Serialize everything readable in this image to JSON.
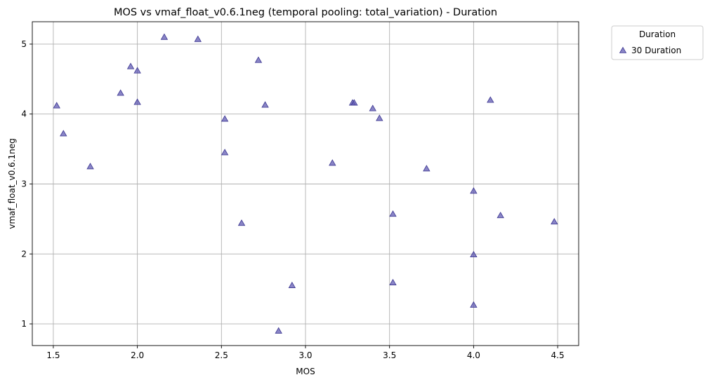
{
  "chart_data": {
    "type": "scatter",
    "title": "MOS vs vmaf_float_v0.6.1neg (temporal pooling: total_variation) - Duration",
    "xlabel": "MOS",
    "ylabel": "vmaf_float_v0.6.1neg",
    "xlim": [
      1.375,
      4.625
    ],
    "ylim": [
      0.69,
      5.32
    ],
    "xticks": [
      1.5,
      2.0,
      2.5,
      3.0,
      3.5,
      4.0,
      4.5
    ],
    "xtick_labels": [
      "1.5",
      "2.0",
      "2.5",
      "3.0",
      "3.5",
      "4.0",
      "4.5"
    ],
    "yticks": [
      1,
      2,
      3,
      4,
      5
    ],
    "ytick_labels": [
      "1",
      "2",
      "3",
      "4",
      "5"
    ],
    "grid": true,
    "legend": {
      "title": "Duration",
      "placement": "outside-top-right"
    },
    "series": [
      {
        "name": "30 Duration",
        "marker": "triangle",
        "color": "#5b55b0",
        "points": [
          {
            "x": 1.52,
            "y": 4.12
          },
          {
            "x": 1.56,
            "y": 3.72
          },
          {
            "x": 1.72,
            "y": 3.25
          },
          {
            "x": 1.9,
            "y": 4.3
          },
          {
            "x": 1.96,
            "y": 4.68
          },
          {
            "x": 2.0,
            "y": 4.62
          },
          {
            "x": 2.0,
            "y": 4.17
          },
          {
            "x": 2.16,
            "y": 5.1
          },
          {
            "x": 2.36,
            "y": 5.07
          },
          {
            "x": 2.52,
            "y": 3.93
          },
          {
            "x": 2.52,
            "y": 3.45
          },
          {
            "x": 2.62,
            "y": 2.44
          },
          {
            "x": 2.72,
            "y": 4.77
          },
          {
            "x": 2.76,
            "y": 4.13
          },
          {
            "x": 2.84,
            "y": 0.9
          },
          {
            "x": 2.92,
            "y": 1.55
          },
          {
            "x": 3.16,
            "y": 3.3
          },
          {
            "x": 3.28,
            "y": 4.16
          },
          {
            "x": 3.29,
            "y": 4.16
          },
          {
            "x": 3.4,
            "y": 4.08
          },
          {
            "x": 3.44,
            "y": 3.94
          },
          {
            "x": 3.52,
            "y": 2.57
          },
          {
            "x": 3.52,
            "y": 1.59
          },
          {
            "x": 3.72,
            "y": 3.22
          },
          {
            "x": 4.0,
            "y": 2.9
          },
          {
            "x": 4.0,
            "y": 1.99
          },
          {
            "x": 4.0,
            "y": 1.27
          },
          {
            "x": 4.1,
            "y": 4.2
          },
          {
            "x": 4.16,
            "y": 2.55
          },
          {
            "x": 4.48,
            "y": 2.46
          }
        ]
      }
    ]
  }
}
